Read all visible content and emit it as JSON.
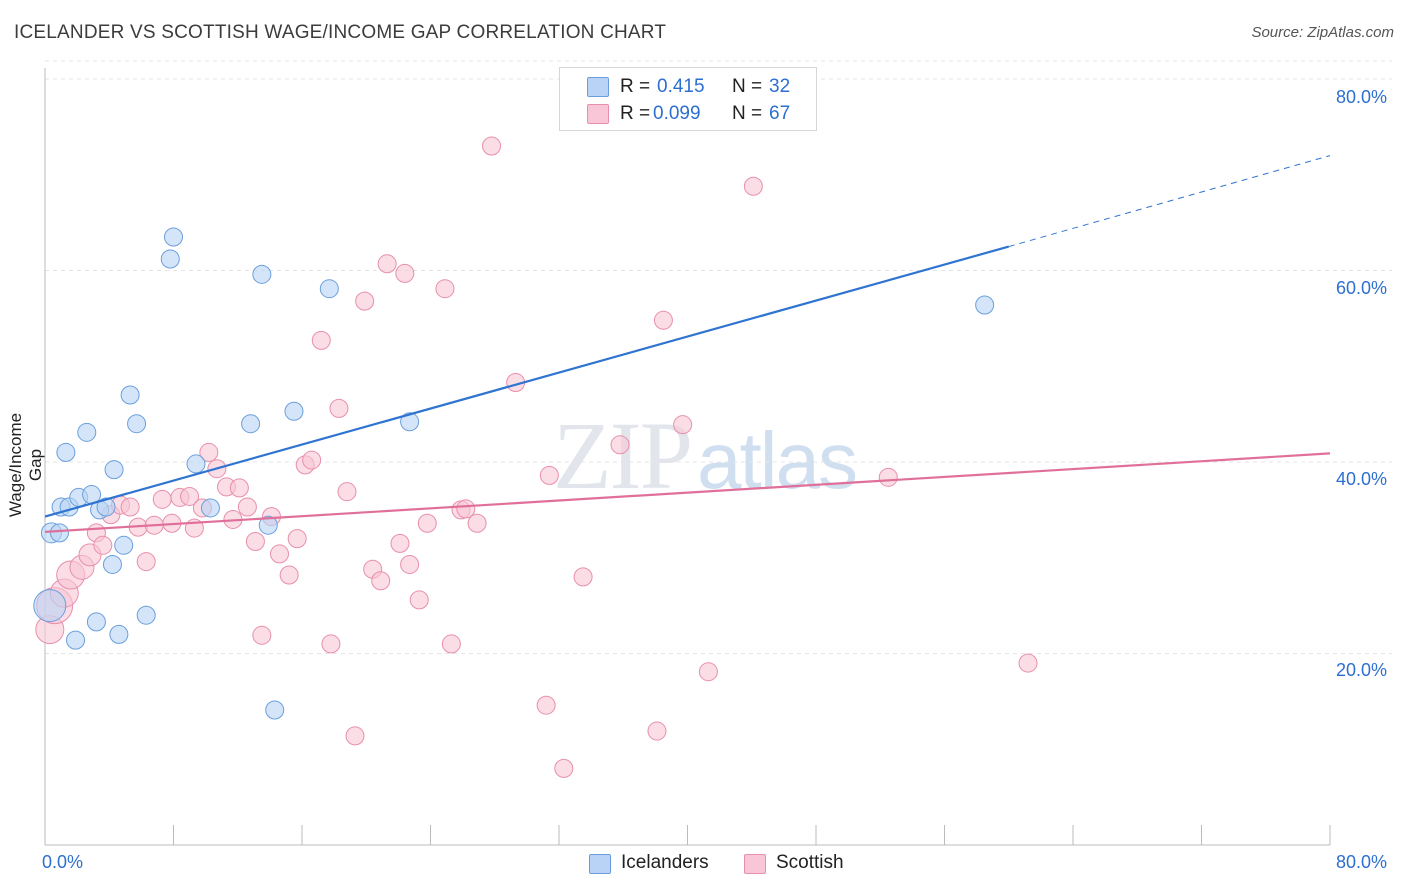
{
  "header": {
    "title": "ICELANDER VS SCOTTISH WAGE/INCOME GAP CORRELATION CHART",
    "source": "Source: ZipAtlas.com"
  },
  "watermark": {
    "zip": "ZIP",
    "atlas": "atlas"
  },
  "legend_top": {
    "rows": [
      {
        "r_label": "R =",
        "r_value": "0.415",
        "n_label": "N =",
        "n_value": "32"
      },
      {
        "r_label": "R =",
        "r_value": "0.099",
        "n_label": "N =",
        "n_value": "67"
      }
    ]
  },
  "legend_bottom": {
    "items": [
      "Icelanders",
      "Scottish"
    ]
  },
  "colors": {
    "icelanders_fill": "#b8d3f5",
    "icelanders_stroke": "#6a9fdc",
    "icelanders_line": "#2f74d0",
    "scottish_fill": "#f8c6d6",
    "scottish_stroke": "#e88fad",
    "scottish_line": "#e0709a",
    "tick_text": "#2d6fd0",
    "grid": "#e4e4e4"
  },
  "chart_data": {
    "type": "scatter",
    "title": "ICELANDER VS SCOTTISH WAGE/INCOME GAP CORRELATION CHART",
    "ylabel": "Wage/Income Gap",
    "xlabel": "",
    "xlim": [
      0,
      80
    ],
    "ylim": [
      0,
      82
    ],
    "x_ticks": [
      "0.0%",
      "80.0%"
    ],
    "y_ticks": [
      {
        "value": 20,
        "label": "20.0%"
      },
      {
        "value": 40,
        "label": "40.0%"
      },
      {
        "value": 60,
        "label": "60.0%"
      },
      {
        "value": 80,
        "label": "80.0%"
      }
    ],
    "grid": true,
    "legend_position": "top-center",
    "series": [
      {
        "name": "Icelanders",
        "r": 0.415,
        "n": 32,
        "trend": {
          "x0": 0,
          "y0": 34.3,
          "x1": 60,
          "y1": 62.5,
          "dashed_to": 80,
          "dashed_y": 72.0
        },
        "points": [
          [
            0.4,
            32.6,
            10
          ],
          [
            0.9,
            32.6,
            9
          ],
          [
            1.0,
            35.3,
            9
          ],
          [
            1.3,
            41.0,
            9
          ],
          [
            1.5,
            35.3,
            9
          ],
          [
            2.1,
            36.3,
            9
          ],
          [
            2.6,
            43.1,
            9
          ],
          [
            2.9,
            36.6,
            9
          ],
          [
            3.2,
            23.3,
            9
          ],
          [
            3.4,
            35.0,
            9
          ],
          [
            3.8,
            35.3,
            9
          ],
          [
            4.2,
            29.3,
            9
          ],
          [
            4.3,
            39.2,
            9
          ],
          [
            4.6,
            22.0,
            9
          ],
          [
            4.9,
            31.3,
            9
          ],
          [
            5.3,
            47.0,
            9
          ],
          [
            5.7,
            44.0,
            9
          ],
          [
            6.3,
            24.0,
            9
          ],
          [
            7.8,
            61.2,
            9
          ],
          [
            8.0,
            63.5,
            9
          ],
          [
            9.4,
            39.8,
            9
          ],
          [
            10.3,
            35.2,
            9
          ],
          [
            12.8,
            44.0,
            9
          ],
          [
            13.5,
            59.6,
            9
          ],
          [
            13.9,
            33.4,
            9
          ],
          [
            14.3,
            14.1,
            9
          ],
          [
            15.5,
            45.3,
            9
          ],
          [
            17.7,
            58.1,
            9
          ],
          [
            22.7,
            44.2,
            9
          ],
          [
            58.5,
            56.4,
            9
          ],
          [
            0.3,
            25.0,
            16
          ],
          [
            1.9,
            21.4,
            9
          ]
        ]
      },
      {
        "name": "Scottish",
        "r": 0.099,
        "n": 67,
        "trend": {
          "x0": 0,
          "y0": 32.7,
          "x1": 80,
          "y1": 40.9
        },
        "points": [
          [
            0.3,
            22.5,
            14
          ],
          [
            0.6,
            25.0,
            18
          ],
          [
            1.2,
            26.3,
            14
          ],
          [
            1.6,
            28.2,
            14
          ],
          [
            2.3,
            29.0,
            12
          ],
          [
            2.8,
            30.3,
            11
          ],
          [
            3.2,
            32.6,
            9
          ],
          [
            3.6,
            31.3,
            9
          ],
          [
            4.1,
            34.5,
            9
          ],
          [
            4.7,
            35.5,
            9
          ],
          [
            5.3,
            35.3,
            9
          ],
          [
            5.8,
            33.2,
            9
          ],
          [
            6.3,
            29.6,
            9
          ],
          [
            6.8,
            33.4,
            9
          ],
          [
            7.3,
            36.1,
            9
          ],
          [
            7.9,
            33.6,
            9
          ],
          [
            8.4,
            36.3,
            9
          ],
          [
            9.0,
            36.4,
            9
          ],
          [
            9.3,
            33.1,
            9
          ],
          [
            9.8,
            35.2,
            9
          ],
          [
            10.2,
            41.0,
            9
          ],
          [
            10.7,
            39.3,
            9
          ],
          [
            11.3,
            37.4,
            9
          ],
          [
            11.7,
            34.0,
            9
          ],
          [
            12.1,
            37.3,
            9
          ],
          [
            12.6,
            35.3,
            9
          ],
          [
            13.1,
            31.7,
            9
          ],
          [
            13.5,
            21.9,
            9
          ],
          [
            14.1,
            34.3,
            9
          ],
          [
            14.6,
            30.4,
            9
          ],
          [
            15.2,
            28.2,
            9
          ],
          [
            15.7,
            32.0,
            9
          ],
          [
            16.2,
            39.7,
            9
          ],
          [
            16.6,
            40.2,
            9
          ],
          [
            17.2,
            52.7,
            9
          ],
          [
            17.8,
            21.0,
            9
          ],
          [
            18.3,
            45.6,
            9
          ],
          [
            18.8,
            36.9,
            9
          ],
          [
            19.3,
            11.4,
            9
          ],
          [
            19.9,
            56.8,
            9
          ],
          [
            20.4,
            28.8,
            9
          ],
          [
            20.9,
            27.6,
            9
          ],
          [
            21.3,
            60.7,
            9
          ],
          [
            22.1,
            31.5,
            9
          ],
          [
            22.4,
            59.7,
            9
          ],
          [
            22.7,
            29.3,
            9
          ],
          [
            23.3,
            25.6,
            9
          ],
          [
            23.8,
            33.6,
            9
          ],
          [
            24.9,
            58.1,
            9
          ],
          [
            25.3,
            21.0,
            9
          ],
          [
            25.9,
            35.0,
            9
          ],
          [
            26.2,
            35.1,
            9
          ],
          [
            26.9,
            33.6,
            9
          ],
          [
            27.8,
            73.0,
            9
          ],
          [
            29.3,
            48.3,
            9
          ],
          [
            31.2,
            14.6,
            9
          ],
          [
            31.4,
            38.6,
            9
          ],
          [
            32.3,
            8.0,
            9
          ],
          [
            33.5,
            28.0,
            9
          ],
          [
            35.8,
            41.8,
            9
          ],
          [
            38.1,
            11.9,
            9
          ],
          [
            38.5,
            54.8,
            9
          ],
          [
            39.7,
            43.9,
            9
          ],
          [
            41.3,
            18.1,
            9
          ],
          [
            44.1,
            68.8,
            9
          ],
          [
            52.5,
            38.4,
            9
          ],
          [
            61.2,
            19.0,
            9
          ]
        ]
      }
    ]
  }
}
